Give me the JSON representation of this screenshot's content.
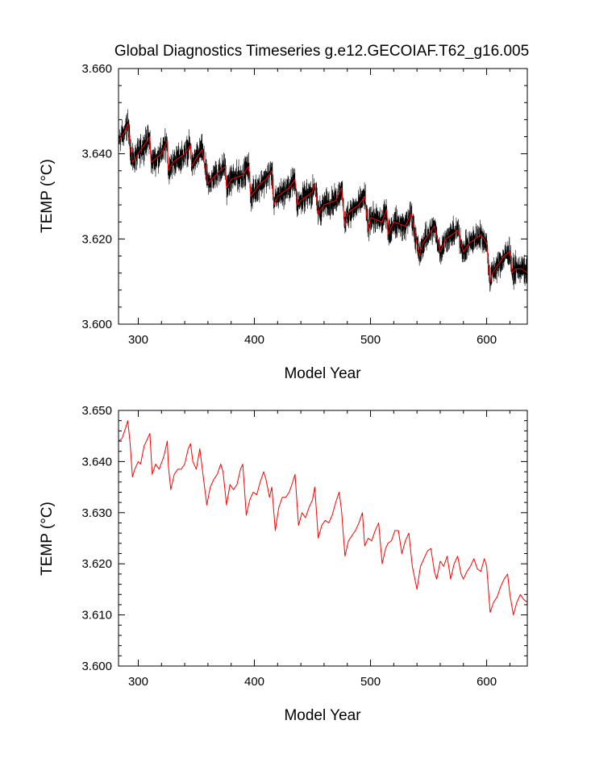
{
  "title": "Global Diagnostics Timeseries g.e12.GECOIAF.T62_g16.005",
  "colors": {
    "raw_series": "#000000",
    "mean_series": "#ff0000",
    "frame": "#000000"
  },
  "chart_data": [
    {
      "type": "line",
      "name": "top-panel",
      "xlabel": "Model Year",
      "ylabel": "TEMP (°C)",
      "xlim": [
        283,
        635
      ],
      "ylim": [
        3.6,
        3.66
      ],
      "x_major_ticks": [
        300,
        400,
        500,
        600
      ],
      "x_tick_labels": [
        "300",
        "400",
        "500",
        "600"
      ],
      "y_major_ticks": [
        3.6,
        3.62,
        3.64,
        3.66
      ],
      "y_tick_labels": [
        "3.600",
        "3.620",
        "3.640",
        "3.660"
      ],
      "series": [
        {
          "name": "monthly",
          "color": "#000000",
          "anchors_x": [
            283,
            288,
            291,
            295,
            300,
            310,
            311,
            320,
            325,
            326,
            330,
            340,
            345,
            346,
            350,
            355,
            360,
            370,
            375,
            376,
            380,
            390,
            395,
            397,
            405,
            410,
            415,
            417,
            420,
            430,
            435,
            437,
            440,
            450,
            452,
            455,
            460,
            470,
            475,
            478,
            480,
            490,
            495,
            498,
            500,
            510,
            514,
            515,
            520,
            530,
            535,
            542,
            545,
            550,
            555,
            560,
            565,
            570,
            575,
            580,
            585,
            590,
            595,
            600,
            603,
            605,
            610,
            615,
            620,
            622,
            625,
            630,
            635
          ],
          "anchors_y": [
            3.643,
            3.645,
            3.647,
            3.638,
            3.64,
            3.644,
            3.638,
            3.64,
            3.643,
            3.636,
            3.638,
            3.64,
            3.642,
            3.637,
            3.639,
            3.641,
            3.633,
            3.636,
            3.637,
            3.632,
            3.634,
            3.635,
            3.637,
            3.63,
            3.633,
            3.634,
            3.636,
            3.628,
            3.63,
            3.632,
            3.634,
            3.628,
            3.629,
            3.631,
            3.633,
            3.626,
            3.628,
            3.629,
            3.632,
            3.623,
            3.626,
            3.628,
            3.63,
            3.622,
            3.625,
            3.624,
            3.627,
            3.621,
            3.624,
            3.623,
            3.626,
            3.616,
            3.619,
            3.621,
            3.623,
            3.617,
            3.62,
            3.621,
            3.622,
            3.617,
            3.619,
            3.62,
            3.621,
            3.619,
            3.61,
            3.612,
            3.614,
            3.616,
            3.617,
            3.612,
            3.613,
            3.613,
            3.612
          ],
          "noise_amplitude": 0.005
        },
        {
          "name": "annual-mean",
          "color": "#ff0000",
          "anchors_x": [
            283,
            288,
            291,
            295,
            300,
            310,
            311,
            320,
            325,
            326,
            330,
            340,
            345,
            346,
            350,
            355,
            360,
            370,
            375,
            376,
            380,
            390,
            395,
            397,
            405,
            410,
            415,
            417,
            420,
            430,
            435,
            437,
            440,
            450,
            452,
            455,
            460,
            470,
            475,
            478,
            480,
            490,
            495,
            498,
            500,
            510,
            514,
            515,
            520,
            530,
            535,
            542,
            545,
            550,
            555,
            560,
            565,
            570,
            575,
            580,
            585,
            590,
            595,
            600,
            603,
            605,
            610,
            615,
            620,
            622,
            625,
            630,
            635
          ],
          "anchors_y": [
            3.643,
            3.645,
            3.647,
            3.638,
            3.64,
            3.644,
            3.638,
            3.64,
            3.643,
            3.636,
            3.638,
            3.64,
            3.642,
            3.637,
            3.639,
            3.641,
            3.633,
            3.636,
            3.637,
            3.632,
            3.634,
            3.635,
            3.637,
            3.63,
            3.633,
            3.634,
            3.636,
            3.628,
            3.63,
            3.632,
            3.634,
            3.628,
            3.629,
            3.631,
            3.633,
            3.626,
            3.628,
            3.629,
            3.632,
            3.623,
            3.626,
            3.628,
            3.63,
            3.622,
            3.625,
            3.624,
            3.627,
            3.621,
            3.624,
            3.623,
            3.626,
            3.616,
            3.619,
            3.621,
            3.623,
            3.617,
            3.62,
            3.621,
            3.622,
            3.617,
            3.619,
            3.62,
            3.621,
            3.619,
            3.61,
            3.612,
            3.614,
            3.616,
            3.617,
            3.612,
            3.613,
            3.613,
            3.612
          ]
        }
      ]
    },
    {
      "type": "line",
      "name": "bottom-panel",
      "xlabel": "Model Year",
      "ylabel": "TEMP (°C)",
      "xlim": [
        283,
        635
      ],
      "ylim": [
        3.6,
        3.65
      ],
      "x_major_ticks": [
        300,
        400,
        500,
        600
      ],
      "x_tick_labels": [
        "300",
        "400",
        "500",
        "600"
      ],
      "y_major_ticks": [
        3.6,
        3.61,
        3.62,
        3.63,
        3.64,
        3.65
      ],
      "y_tick_labels": [
        "3.600",
        "3.610",
        "3.620",
        "3.630",
        "3.640",
        "3.650"
      ],
      "series": [
        {
          "name": "annual-mean",
          "color": "#ff0000",
          "anchors_x": [
            283,
            286,
            289,
            291,
            293,
            295,
            297,
            300,
            302,
            305,
            308,
            310,
            312,
            315,
            318,
            322,
            325,
            326,
            328,
            331,
            334,
            337,
            340,
            343,
            345,
            347,
            350,
            353,
            356,
            359,
            362,
            365,
            368,
            371,
            373,
            376,
            379,
            382,
            385,
            388,
            390,
            393,
            396,
            399,
            402,
            405,
            408,
            410,
            413,
            415,
            418,
            421,
            424,
            427,
            430,
            433,
            435,
            438,
            441,
            444,
            447,
            450,
            452,
            455,
            458,
            461,
            464,
            467,
            470,
            473,
            475,
            478,
            481,
            484,
            487,
            490,
            493,
            495,
            498,
            501,
            504,
            507,
            510,
            513,
            515,
            518,
            521,
            524,
            527,
            530,
            533,
            536,
            540,
            543,
            546,
            549,
            552,
            555,
            557,
            560,
            563,
            566,
            569,
            572,
            575,
            578,
            580,
            583,
            586,
            589,
            592,
            595,
            598,
            600,
            603,
            606,
            609,
            612,
            615,
            618,
            620,
            623,
            626,
            629,
            632,
            635
          ],
          "anchors_y": [
            3.644,
            3.6445,
            3.6465,
            3.648,
            3.6435,
            3.637,
            3.6385,
            3.64,
            3.6395,
            3.643,
            3.6445,
            3.6455,
            3.6375,
            3.6395,
            3.6385,
            3.641,
            3.644,
            3.639,
            3.6345,
            3.6375,
            3.6385,
            3.6385,
            3.6395,
            3.6425,
            3.6435,
            3.64,
            3.6385,
            3.6425,
            3.637,
            3.6315,
            3.635,
            3.6365,
            3.6375,
            3.6395,
            3.638,
            3.6315,
            3.6355,
            3.6345,
            3.6355,
            3.6385,
            3.6395,
            3.6295,
            3.6325,
            3.634,
            3.6335,
            3.636,
            3.638,
            3.6365,
            3.633,
            3.635,
            3.6265,
            3.631,
            3.633,
            3.633,
            3.634,
            3.636,
            3.6375,
            3.6275,
            3.63,
            3.629,
            3.631,
            3.6325,
            3.635,
            3.625,
            3.6275,
            3.6285,
            3.628,
            3.6295,
            3.632,
            3.634,
            3.6305,
            3.6215,
            3.6245,
            3.6255,
            3.6265,
            3.628,
            3.63,
            3.6235,
            3.625,
            3.6245,
            3.6265,
            3.628,
            3.62,
            3.623,
            3.624,
            3.6245,
            3.6265,
            3.6265,
            3.622,
            3.6245,
            3.626,
            3.6195,
            3.615,
            3.6195,
            3.621,
            3.6225,
            3.623,
            3.6185,
            3.617,
            3.6205,
            3.6195,
            3.6215,
            3.617,
            3.62,
            3.6215,
            3.618,
            3.617,
            3.6185,
            3.6195,
            3.621,
            3.619,
            3.6185,
            3.621,
            3.6195,
            3.6105,
            3.6125,
            3.6135,
            3.6155,
            3.617,
            3.618,
            3.614,
            3.61,
            3.6125,
            3.614,
            3.613,
            3.6125
          ]
        }
      ]
    }
  ]
}
